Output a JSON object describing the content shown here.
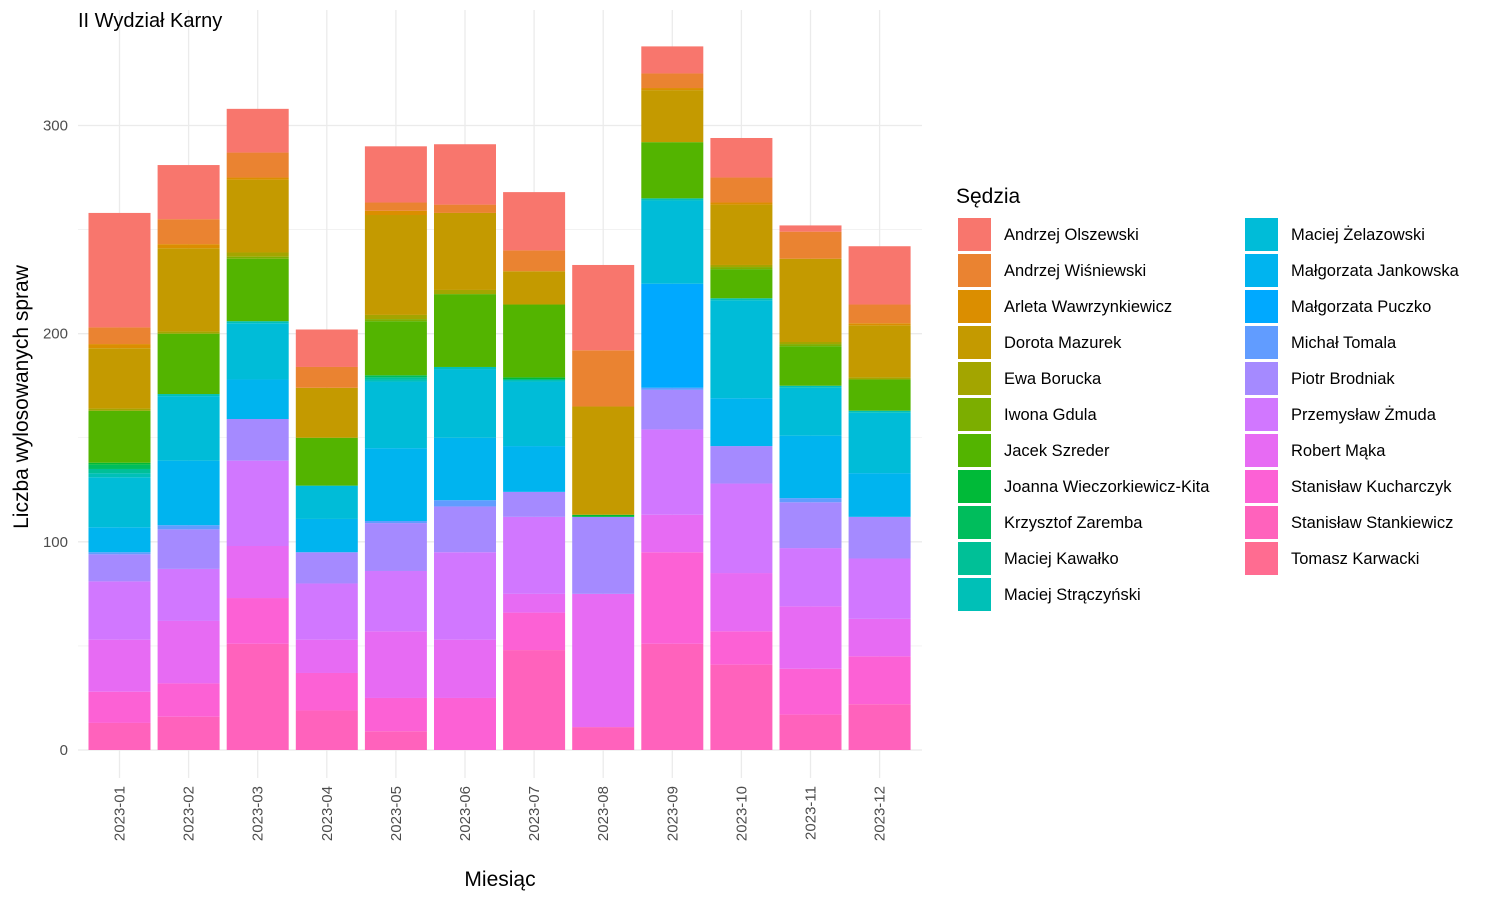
{
  "chart_data": {
    "type": "bar",
    "stacked": true,
    "title": "II Wydział Karny",
    "xlabel": "Miesiąc",
    "ylabel": "Liczba wylosowanych spraw",
    "ylim": [
      0,
      340
    ],
    "yticks": [
      0,
      100,
      200,
      300
    ],
    "grid": true,
    "legend_title": "Sędzia",
    "legend_position": "right",
    "categories": [
      "2023-01",
      "2023-02",
      "2023-03",
      "2023-04",
      "2023-05",
      "2023-06",
      "2023-07",
      "2023-08",
      "2023-09",
      "2023-10",
      "2023-11",
      "2023-12"
    ],
    "series": [
      {
        "name": "Tomasz Karwacki",
        "color": "#FF6C91",
        "values": [
          0,
          0,
          0,
          0,
          0,
          0,
          0,
          0,
          0,
          0,
          0,
          0
        ]
      },
      {
        "name": "Stanisław Stankiewicz",
        "color": "#FF62BC",
        "values": [
          13,
          16,
          51,
          19,
          9,
          0,
          48,
          11,
          51,
          41,
          17,
          22
        ]
      },
      {
        "name": "Stanisław Kucharczyk",
        "color": "#FC61D5",
        "values": [
          15,
          16,
          22,
          18,
          16,
          25,
          18,
          0,
          44,
          16,
          22,
          23
        ]
      },
      {
        "name": "Robert Mąka",
        "color": "#E76BF3",
        "values": [
          25,
          30,
          25,
          16,
          32,
          28,
          9,
          64,
          18,
          28,
          30,
          18
        ]
      },
      {
        "name": "Przemysław Żmuda",
        "color": "#D177FF",
        "values": [
          28,
          25,
          41,
          27,
          29,
          42,
          37,
          0,
          41,
          43,
          28,
          29
        ]
      },
      {
        "name": "Piotr Brodniak",
        "color": "#A58AFF",
        "values": [
          13,
          19,
          20,
          15,
          23,
          22,
          12,
          37,
          19,
          18,
          22,
          20
        ]
      },
      {
        "name": "Michał Tomala",
        "color": "#619CFF",
        "values": [
          1,
          2,
          0,
          0,
          1,
          3,
          0,
          0,
          1,
          0,
          2,
          0
        ]
      },
      {
        "name": "Małgorzata Puczko",
        "color": "#00A9FF",
        "values": [
          0,
          0,
          0,
          0,
          0,
          0,
          0,
          0,
          50,
          0,
          0,
          0
        ]
      },
      {
        "name": "Małgorzata Jankowska",
        "color": "#00B4EF",
        "values": [
          12,
          31,
          19,
          16,
          35,
          30,
          22,
          0,
          0,
          23,
          30,
          21
        ]
      },
      {
        "name": "Maciej Żelazowski",
        "color": "#00BCD8",
        "values": [
          24,
          31,
          27,
          16,
          32,
          33,
          31,
          0,
          40,
          47,
          23,
          29
        ]
      },
      {
        "name": "Maciej Strączyński",
        "color": "#00C0B7",
        "values": [
          2,
          1,
          1,
          0,
          1,
          1,
          1,
          0,
          1,
          1,
          1,
          1
        ]
      },
      {
        "name": "Maciej Kawałko",
        "color": "#00C097",
        "values": [
          2,
          0,
          0,
          0,
          1,
          0,
          0,
          0,
          0,
          0,
          0,
          0
        ]
      },
      {
        "name": "Krzysztof Zaremba",
        "color": "#00BD5C",
        "values": [
          2,
          0,
          0,
          0,
          1,
          0,
          0,
          0,
          0,
          0,
          0,
          0
        ]
      },
      {
        "name": "Joanna Wieczorkiewicz-Kita",
        "color": "#00BA38",
        "values": [
          1,
          0,
          0,
          0,
          0,
          0,
          1,
          1,
          0,
          0,
          0,
          0
        ]
      },
      {
        "name": "Jacek Szreder",
        "color": "#53B400",
        "values": [
          25,
          29,
          30,
          23,
          26,
          35,
          35,
          0,
          27,
          14,
          19,
          15
        ]
      },
      {
        "name": "Iwona Gdula",
        "color": "#7CAE00",
        "values": [
          0,
          0,
          1,
          0,
          1,
          0,
          0,
          0,
          0,
          1,
          1,
          0
        ]
      },
      {
        "name": "Ewa Borucka",
        "color": "#A3A500",
        "values": [
          1,
          1,
          2,
          0,
          2,
          2,
          0,
          0,
          0,
          1,
          1,
          1
        ]
      },
      {
        "name": "Dorota Mazurek",
        "color": "#C49A00",
        "values": [
          29,
          40,
          35,
          24,
          48,
          37,
          16,
          52,
          25,
          29,
          40,
          25
        ]
      },
      {
        "name": "Arleta Wawrzynkiewicz",
        "color": "#DB8E00",
        "values": [
          2,
          2,
          1,
          0,
          2,
          0,
          0,
          0,
          1,
          1,
          0,
          1
        ]
      },
      {
        "name": "Andrzej Wiśniewski",
        "color": "#EA8331",
        "values": [
          8,
          12,
          12,
          10,
          4,
          4,
          10,
          27,
          7,
          12,
          13,
          9
        ]
      },
      {
        "name": "Andrzej Olszewski",
        "color": "#F8766D",
        "values": [
          55,
          26,
          21,
          18,
          27,
          29,
          28,
          41,
          13,
          19,
          3,
          28
        ]
      }
    ],
    "legend_columns": [
      [
        "Andrzej Olszewski",
        "Andrzej Wiśniewski",
        "Arleta Wawrzynkiewicz",
        "Dorota Mazurek",
        "Ewa Borucka",
        "Iwona Gdula",
        "Jacek Szreder",
        "Joanna Wieczorkiewicz-Kita",
        "Krzysztof Zaremba",
        "Maciej Kawałko",
        "Maciej Strączyński"
      ],
      [
        "Maciej Żelazowski",
        "Małgorzata Jankowska",
        "Małgorzata Puczko",
        "Michał Tomala",
        "Piotr Brodniak",
        "Przemysław Żmuda",
        "Robert Mąka",
        "Stanisław Kucharczyk",
        "Stanisław Stankiewicz",
        "Tomasz Karwacki"
      ]
    ]
  }
}
